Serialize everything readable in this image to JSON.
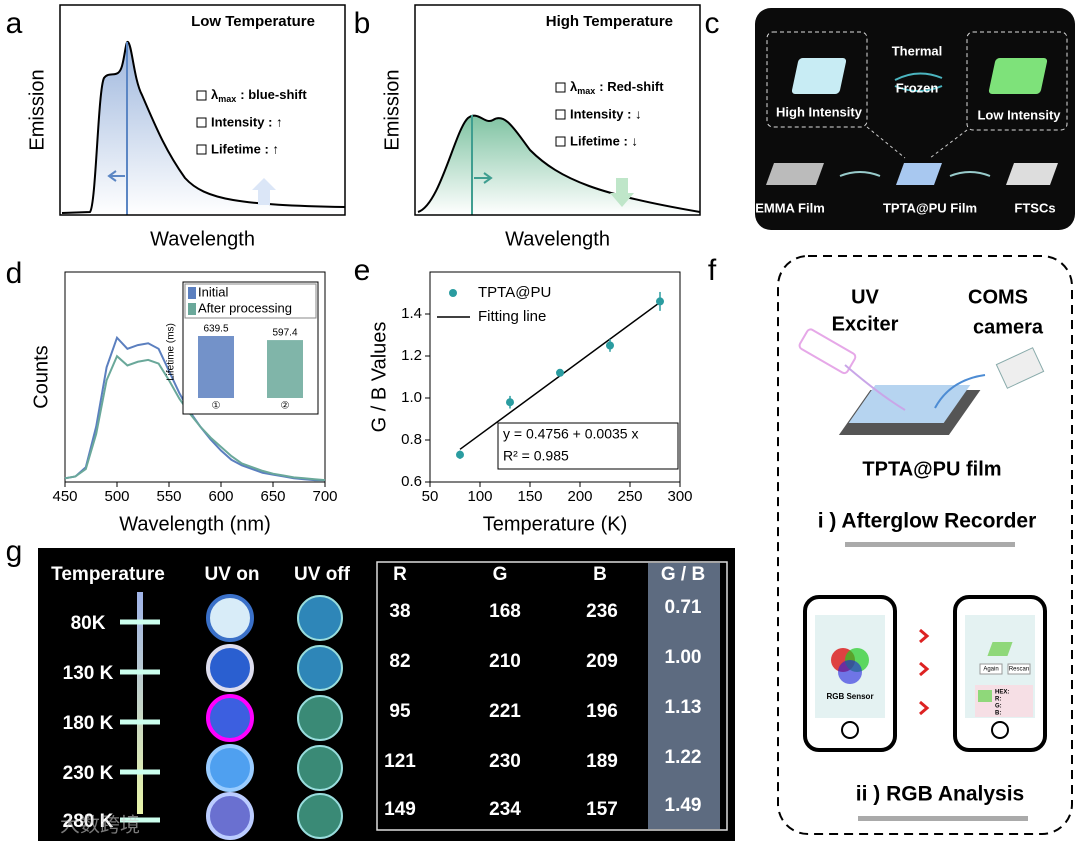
{
  "panel_labels": [
    "a",
    "b",
    "c",
    "d",
    "e",
    "f",
    "g"
  ],
  "panel_a": {
    "title": "Low Temperature",
    "lambda": "λ",
    "lambda_sub": "max",
    "items": [
      ": blue-shift",
      "Intensity : ↑",
      "Lifetime : ↑"
    ],
    "x_label": "Wavelength",
    "y_label": "Emission"
  },
  "panel_b": {
    "title": "High Temperature",
    "lambda": "λ",
    "lambda_sub": "max",
    "items": [
      ": Red-shift",
      "Intensity : ↓",
      "Lifetime : ↓"
    ],
    "x_label": "Wavelength",
    "y_label": "Emission"
  },
  "panel_c": {
    "thermal": "Thermal",
    "frozen": "Frozen",
    "high": "High Intensity",
    "low": "Low Intensity",
    "films": [
      "EMMA Film",
      "TPTA@PU Film",
      "FTSCs"
    ]
  },
  "chart_data": [
    {
      "type": "line",
      "x_label": "Wavelength (nm)",
      "y_label": "Counts",
      "x": [
        450,
        460,
        470,
        480,
        490,
        500,
        510,
        520,
        530,
        540,
        550,
        560,
        570,
        580,
        590,
        600,
        610,
        620,
        630,
        640,
        650,
        660,
        670,
        680,
        690,
        700
      ],
      "series": [
        {
          "name": "Initial",
          "color": "#5b7fbf",
          "values": [
            0.02,
            0.03,
            0.08,
            0.3,
            0.62,
            0.78,
            0.72,
            0.74,
            0.75,
            0.72,
            0.6,
            0.48,
            0.38,
            0.3,
            0.23,
            0.17,
            0.12,
            0.09,
            0.07,
            0.05,
            0.04,
            0.03,
            0.02,
            0.015,
            0.01,
            0.01
          ]
        },
        {
          "name": "After processing",
          "color": "#6aa89a",
          "values": [
            0.02,
            0.03,
            0.07,
            0.26,
            0.55,
            0.68,
            0.63,
            0.65,
            0.66,
            0.64,
            0.55,
            0.45,
            0.37,
            0.3,
            0.24,
            0.19,
            0.14,
            0.1,
            0.08,
            0.06,
            0.045,
            0.035,
            0.025,
            0.02,
            0.015,
            0.01
          ]
        }
      ],
      "xlim": [
        450,
        700
      ],
      "xticks": [
        450,
        500,
        550,
        600,
        650,
        700
      ],
      "ylim": [
        0,
        1
      ],
      "inset": {
        "type": "bar",
        "y_label": "Lifetime (ms)",
        "categories": [
          "①",
          "②"
        ],
        "values": [
          639.5,
          597.4
        ]
      }
    },
    {
      "type": "scatter",
      "x_label": "Temperature (K)",
      "y_label": "G / B Values",
      "color": "#2a9ca0",
      "series": [
        {
          "name": "TPTA@PU",
          "x": [
            80,
            130,
            180,
            230,
            280
          ],
          "values": [
            0.73,
            0.98,
            1.12,
            1.25,
            1.46
          ],
          "errors": [
            0.02,
            0.03,
            0.015,
            0.03,
            0.045
          ]
        }
      ],
      "fit": {
        "name": "Fitting line",
        "intercept": 0.4756,
        "slope": 0.0035,
        "equation": "y = 0.4756 + 0.0035 x",
        "r2": "R² = 0.985"
      },
      "xlim": [
        50,
        300
      ],
      "xticks": [
        50,
        100,
        150,
        200,
        250,
        300
      ],
      "ylim": [
        0.6,
        1.6
      ],
      "yticks": [
        0.6,
        0.8,
        {
          "value": 1,
          "label": "1.0"
        },
        1.2,
        1.4
      ]
    }
  ],
  "panel_f": {
    "uv": "UV",
    "exciter": "Exciter",
    "coms": "COMS",
    "camera": "camera",
    "film": "TPTA@PU film",
    "recorder": "i ) Afterglow Recorder",
    "sensor": "RGB Sensor",
    "again": "Again",
    "rescan": "Rescan",
    "hex": [
      "HEX:",
      "R:",
      "G:",
      "B:"
    ],
    "analysis": "ii ) RGB Analysis"
  },
  "table": {
    "headers": [
      "Temperature",
      "UV on",
      "UV off",
      "R",
      "G",
      "B",
      "G / B"
    ],
    "rows": [
      [
        "80K",
        38,
        168,
        236,
        0.71
      ],
      [
        "130 K",
        82,
        210,
        209,
        "1.00"
      ],
      [
        "180 K",
        95,
        221,
        196,
        1.13
      ],
      [
        "230 K",
        121,
        230,
        189,
        1.22
      ],
      [
        "280 K",
        149,
        234,
        157,
        1.49
      ]
    ]
  },
  "watermark": "大数跨境"
}
